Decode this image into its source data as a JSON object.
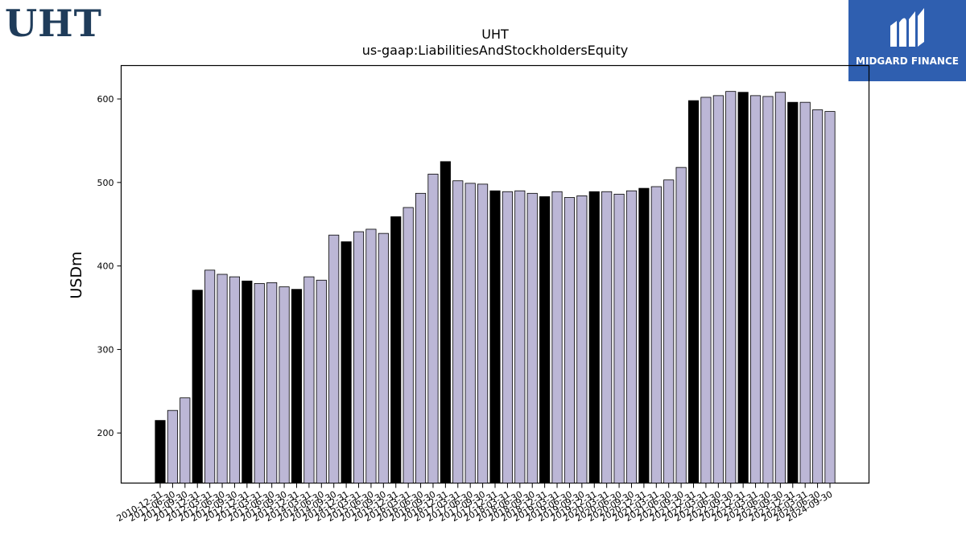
{
  "header": {
    "ticker_logo": "UHT",
    "brand_name": "MIDGARD FINANCE"
  },
  "colors": {
    "bar_highlight": "#000000",
    "bar_regular": "#bcb7d6",
    "bar_edge": "#000000",
    "brand_bg": "#2f5fb0"
  },
  "chart_data": {
    "type": "bar",
    "title": "UHT",
    "subtitle": "us-gaap:LiabilitiesAndStockholdersEquity",
    "xlabel": "",
    "ylabel": "USDm",
    "ylim": [
      140,
      640
    ],
    "yticks": [
      200,
      300,
      400,
      500,
      600
    ],
    "grid": false,
    "categories": [
      "2010-12-31",
      "2011-06-30",
      "2011-09-30",
      "2011-12-31",
      "2012-03-31",
      "2012-06-30",
      "2012-09-30",
      "2012-12-31",
      "2013-03-31",
      "2013-06-30",
      "2013-09-30",
      "2013-12-31",
      "2014-03-31",
      "2014-06-30",
      "2014-09-30",
      "2014-12-31",
      "2015-03-31",
      "2015-06-30",
      "2015-09-30",
      "2015-12-31",
      "2016-03-31",
      "2016-06-30",
      "2016-09-30",
      "2016-12-31",
      "2017-03-31",
      "2017-06-30",
      "2017-09-30",
      "2017-12-31",
      "2018-03-31",
      "2018-06-30",
      "2018-09-30",
      "2018-12-31",
      "2019-03-31",
      "2019-06-30",
      "2019-09-30",
      "2019-12-31",
      "2020-03-31",
      "2020-06-30",
      "2020-09-30",
      "2020-12-31",
      "2021-03-31",
      "2021-06-30",
      "2021-09-30",
      "2021-12-31",
      "2022-03-31",
      "2022-06-30",
      "2022-09-30",
      "2022-12-31",
      "2023-03-31",
      "2023-06-30",
      "2023-09-30",
      "2023-12-31",
      "2024-03-31",
      "2024-06-30",
      "2024-09-30"
    ],
    "tick_labels": [
      "2010-12-31",
      "2011-06-30",
      "2011-09-30",
      "2011-12-31",
      "2012-03-31",
      "2012-06-30",
      "2012-09-30",
      "2012-12-31",
      "2013-03-31",
      "2013-06-30",
      "2013-09-30",
      "2013-12-31",
      "2014-03-31",
      "2014-06-30",
      "2014-09-30",
      "2014-12-31",
      "2015-03-31",
      "2015-06-30",
      "2015-09-30",
      "2015-12-31",
      "2016-03-31",
      "2016-06-30",
      "2016-09-30",
      "2016-12-31",
      "2017-03-31",
      "2017-06-30",
      "2017-09-30",
      "2017-12-31",
      "2018-03-31",
      "2018-06-30",
      "2018-09-30",
      "2018-12-31",
      "2019-03-31",
      "2019-06-30",
      "2019-09-30",
      "2019-12-31",
      "2020-03-31",
      "2020-06-30",
      "2020-09-30",
      "2020-12-31",
      "2021-03-31",
      "2021-06-30",
      "2021-09-30",
      "2021-12-31",
      "2022-03-31",
      "2022-06-30",
      "2022-09-30",
      "2022-12-31",
      "2023-03-31",
      "2023-06-30",
      "2023-09-30",
      "2023-12-31",
      "2024-03-31",
      "2024-06-30",
      "2024-09-30"
    ],
    "values": [
      215,
      227,
      242,
      371,
      395,
      390,
      387,
      382,
      379,
      380,
      375,
      372,
      387,
      383,
      437,
      429,
      441,
      444,
      439,
      459,
      470,
      487,
      510,
      525,
      502,
      499,
      498,
      490,
      489,
      490,
      487,
      483,
      489,
      482,
      484,
      489,
      489,
      486,
      490,
      493,
      495,
      503,
      518,
      598,
      602,
      604,
      609,
      608,
      604,
      603,
      608,
      596,
      596,
      587,
      585
    ],
    "highlight": [
      true,
      false,
      false,
      true,
      false,
      false,
      false,
      true,
      false,
      false,
      false,
      true,
      false,
      false,
      false,
      true,
      false,
      false,
      false,
      true,
      false,
      false,
      false,
      true,
      false,
      false,
      false,
      true,
      false,
      false,
      false,
      true,
      false,
      false,
      false,
      true,
      false,
      false,
      false,
      true,
      false,
      false,
      false,
      true,
      false,
      false,
      false,
      true,
      false,
      false,
      false,
      true,
      false,
      false,
      false
    ]
  }
}
